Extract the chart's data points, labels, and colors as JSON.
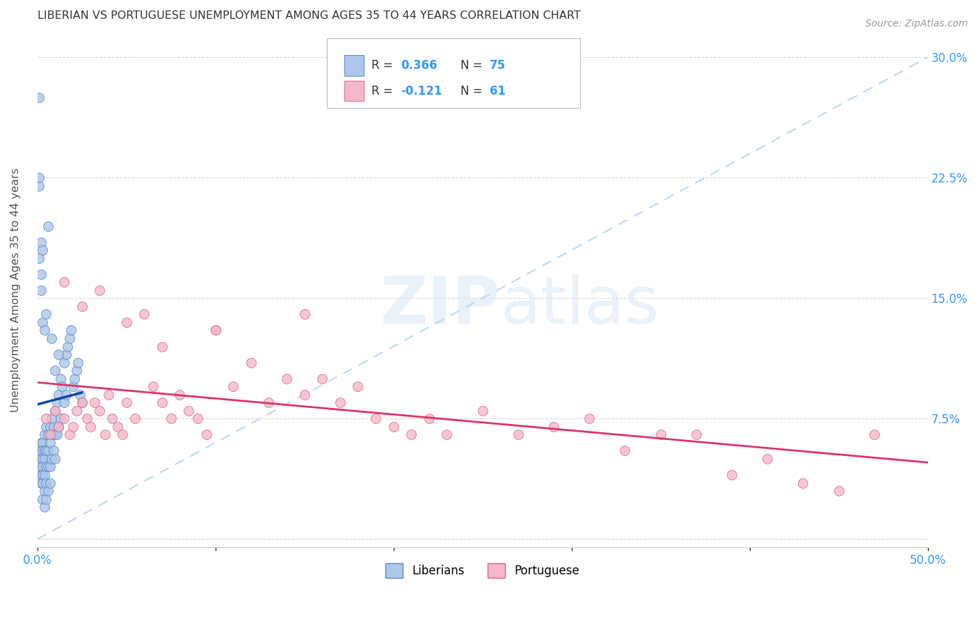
{
  "title": "LIBERIAN VS PORTUGUESE UNEMPLOYMENT AMONG AGES 35 TO 44 YEARS CORRELATION CHART",
  "source": "Source: ZipAtlas.com",
  "ylabel": "Unemployment Among Ages 35 to 44 years",
  "xlim": [
    0,
    0.5
  ],
  "ylim": [
    -0.005,
    0.315
  ],
  "xticks": [
    0.0,
    0.1,
    0.2,
    0.3,
    0.4,
    0.5
  ],
  "xticklabels": [
    "0.0%",
    "",
    "",
    "",
    "",
    "50.0%"
  ],
  "yticks": [
    0.0,
    0.075,
    0.15,
    0.225,
    0.3
  ],
  "yticklabels_right": [
    "",
    "7.5%",
    "15.0%",
    "22.5%",
    "30.0%"
  ],
  "liberian_color": "#aec6e8",
  "portuguese_color": "#f4b8c8",
  "liberian_edge": "#5588cc",
  "portuguese_edge": "#dd6688",
  "trend_liberian_color": "#1144aa",
  "trend_portuguese_color": "#dd3366",
  "diag_color": "#c0d8ee",
  "R_liberian": 0.366,
  "N_liberian": 75,
  "R_portuguese": -0.121,
  "N_portuguese": 61,
  "background_color": "#ffffff",
  "grid_color": "#cccccc",
  "title_color": "#333333",
  "axis_color": "#3399ff",
  "legend_label_1": "Liberians",
  "legend_label_2": "Portuguese",
  "watermark_zip": "ZIP",
  "watermark_atlas": "atlas",
  "liberian_x": [
    0.001,
    0.001,
    0.002,
    0.002,
    0.002,
    0.002,
    0.003,
    0.003,
    0.003,
    0.003,
    0.003,
    0.003,
    0.003,
    0.004,
    0.004,
    0.004,
    0.004,
    0.004,
    0.004,
    0.005,
    0.005,
    0.005,
    0.005,
    0.005,
    0.006,
    0.006,
    0.006,
    0.006,
    0.007,
    0.007,
    0.007,
    0.007,
    0.008,
    0.008,
    0.008,
    0.009,
    0.009,
    0.01,
    0.01,
    0.01,
    0.011,
    0.011,
    0.012,
    0.012,
    0.013,
    0.013,
    0.014,
    0.015,
    0.015,
    0.016,
    0.016,
    0.017,
    0.018,
    0.019,
    0.02,
    0.021,
    0.022,
    0.023,
    0.024,
    0.025,
    0.001,
    0.002,
    0.002,
    0.003,
    0.003,
    0.004,
    0.005,
    0.006,
    0.008,
    0.01,
    0.012,
    0.001,
    0.001,
    0.001,
    0.002
  ],
  "liberian_y": [
    0.055,
    0.045,
    0.06,
    0.05,
    0.04,
    0.035,
    0.06,
    0.055,
    0.05,
    0.045,
    0.04,
    0.035,
    0.025,
    0.065,
    0.055,
    0.05,
    0.04,
    0.03,
    0.02,
    0.07,
    0.055,
    0.045,
    0.035,
    0.025,
    0.065,
    0.055,
    0.045,
    0.03,
    0.07,
    0.06,
    0.045,
    0.035,
    0.075,
    0.065,
    0.05,
    0.07,
    0.055,
    0.08,
    0.065,
    0.05,
    0.085,
    0.065,
    0.09,
    0.07,
    0.1,
    0.075,
    0.095,
    0.11,
    0.085,
    0.115,
    0.09,
    0.12,
    0.125,
    0.13,
    0.095,
    0.1,
    0.105,
    0.11,
    0.09,
    0.085,
    0.22,
    0.185,
    0.155,
    0.18,
    0.135,
    0.13,
    0.14,
    0.195,
    0.125,
    0.105,
    0.115,
    0.275,
    0.225,
    0.175,
    0.165
  ],
  "portuguese_x": [
    0.005,
    0.007,
    0.01,
    0.012,
    0.015,
    0.018,
    0.02,
    0.022,
    0.025,
    0.028,
    0.03,
    0.032,
    0.035,
    0.038,
    0.04,
    0.042,
    0.045,
    0.048,
    0.05,
    0.055,
    0.06,
    0.065,
    0.07,
    0.075,
    0.08,
    0.085,
    0.09,
    0.095,
    0.1,
    0.11,
    0.12,
    0.13,
    0.14,
    0.15,
    0.16,
    0.17,
    0.18,
    0.19,
    0.2,
    0.21,
    0.22,
    0.23,
    0.25,
    0.27,
    0.29,
    0.31,
    0.33,
    0.35,
    0.37,
    0.39,
    0.41,
    0.43,
    0.45,
    0.47,
    0.015,
    0.025,
    0.035,
    0.05,
    0.07,
    0.1,
    0.15
  ],
  "portuguese_y": [
    0.075,
    0.065,
    0.08,
    0.07,
    0.075,
    0.065,
    0.07,
    0.08,
    0.085,
    0.075,
    0.07,
    0.085,
    0.08,
    0.065,
    0.09,
    0.075,
    0.07,
    0.065,
    0.085,
    0.075,
    0.14,
    0.095,
    0.085,
    0.075,
    0.09,
    0.08,
    0.075,
    0.065,
    0.13,
    0.095,
    0.11,
    0.085,
    0.1,
    0.09,
    0.1,
    0.085,
    0.095,
    0.075,
    0.07,
    0.065,
    0.075,
    0.065,
    0.08,
    0.065,
    0.07,
    0.075,
    0.055,
    0.065,
    0.065,
    0.04,
    0.05,
    0.035,
    0.03,
    0.065,
    0.16,
    0.145,
    0.155,
    0.135,
    0.12,
    0.13,
    0.14
  ]
}
